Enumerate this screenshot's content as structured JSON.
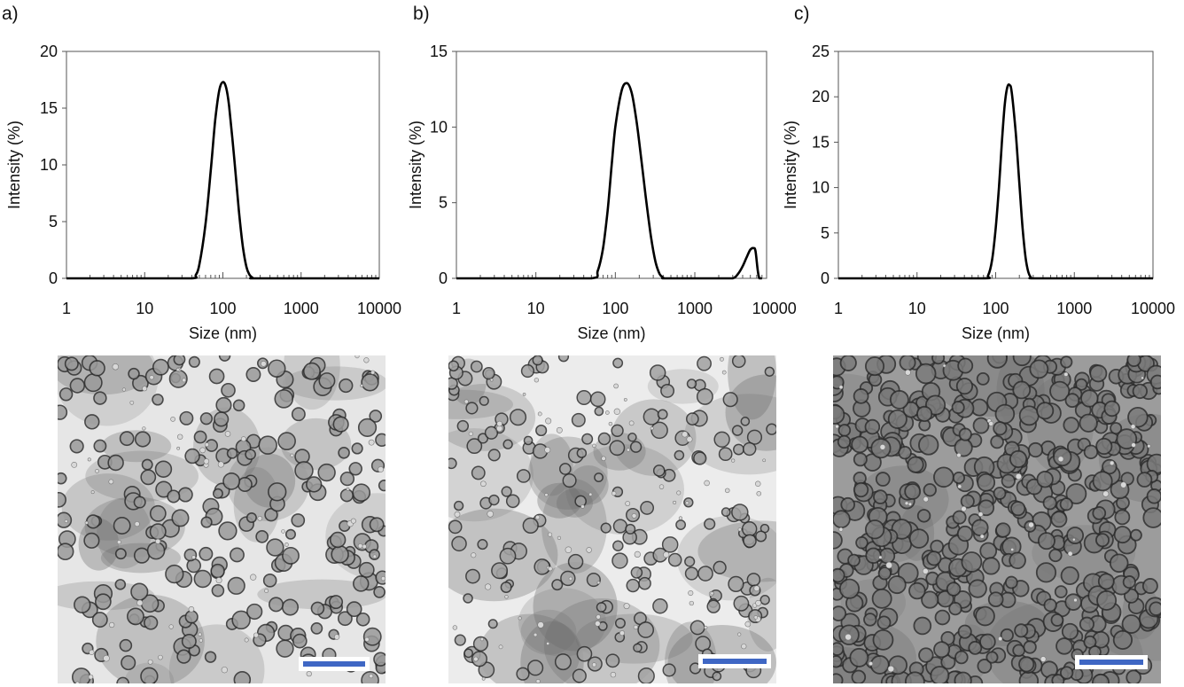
{
  "panels": [
    {
      "letter": "a)"
    },
    {
      "letter": "b)"
    },
    {
      "letter": "c)"
    }
  ],
  "chart_data": [
    {
      "type": "line",
      "xlabel": "Size (nm)",
      "ylabel": "Intensity (%)",
      "xscale": "log",
      "xlim": [
        1,
        10000
      ],
      "ylim": [
        0,
        20
      ],
      "xticks": [
        "1",
        "10",
        "100",
        "1000",
        "10000"
      ],
      "yticks": [
        "0",
        "5",
        "10",
        "15",
        "20"
      ],
      "grid": false,
      "series": [
        {
          "x": [
            1,
            10,
            40,
            45,
            50,
            60,
            70,
            80,
            90,
            100,
            110,
            120,
            140,
            160,
            180,
            200,
            220,
            240,
            250,
            1000,
            10000
          ],
          "y": [
            0,
            0,
            0,
            0.3,
            1.2,
            4.8,
            9.5,
            14.0,
            16.6,
            17.3,
            16.8,
            15.2,
            10.5,
            6.0,
            2.8,
            1.0,
            0.3,
            0.05,
            0,
            0,
            0
          ]
        }
      ]
    },
    {
      "type": "line",
      "xlabel": "Size (nm)",
      "ylabel": "Intensity (%)",
      "xscale": "log",
      "xlim": [
        1,
        8000
      ],
      "ylim": [
        0,
        15
      ],
      "xticks": [
        "1",
        "10",
        "100",
        "1000",
        "10000"
      ],
      "yticks": [
        "0",
        "5",
        "10",
        "15"
      ],
      "grid": false,
      "series": [
        {
          "x": [
            1,
            10,
            50,
            60,
            70,
            80,
            90,
            100,
            120,
            140,
            160,
            180,
            200,
            240,
            280,
            320,
            360,
            400,
            420,
            1000,
            2000,
            3000,
            3500,
            4000,
            4500,
            5000,
            5500,
            5800,
            6200,
            6500,
            7000
          ],
          "y": [
            0,
            0,
            0,
            0.5,
            2.0,
            4.5,
            7.5,
            10.0,
            12.4,
            12.9,
            12.3,
            10.8,
            9.0,
            5.5,
            2.8,
            1.1,
            0.3,
            0.05,
            0,
            0,
            0,
            0,
            0.3,
            0.8,
            1.4,
            1.9,
            2.0,
            1.8,
            0.5,
            0,
            0
          ]
        }
      ]
    },
    {
      "type": "line",
      "xlabel": "Size (nm)",
      "ylabel": "Intensity (%)",
      "xscale": "log",
      "xlim": [
        1,
        10000
      ],
      "ylim": [
        0,
        25
      ],
      "xticks": [
        "1",
        "10",
        "100",
        "1000",
        "10000"
      ],
      "yticks": [
        "0",
        "5",
        "10",
        "15",
        "20",
        "25"
      ],
      "grid": false,
      "series": [
        {
          "x": [
            1,
            10,
            70,
            80,
            90,
            100,
            110,
            120,
            130,
            140,
            150,
            160,
            180,
            200,
            220,
            240,
            260,
            280,
            300,
            1000,
            10000
          ],
          "y": [
            0,
            0,
            0,
            0.3,
            2.0,
            5.5,
            10.0,
            15.0,
            19.0,
            21.0,
            21.3,
            20.5,
            16.0,
            10.5,
            5.5,
            2.3,
            0.7,
            0.1,
            0,
            0,
            0
          ]
        }
      ]
    }
  ],
  "colors": {
    "scale_bar": "#3f67c4",
    "tem_background": "#e9e9e9",
    "particle": "#8e8e8e",
    "particle_rim": "#2e2e2e"
  }
}
